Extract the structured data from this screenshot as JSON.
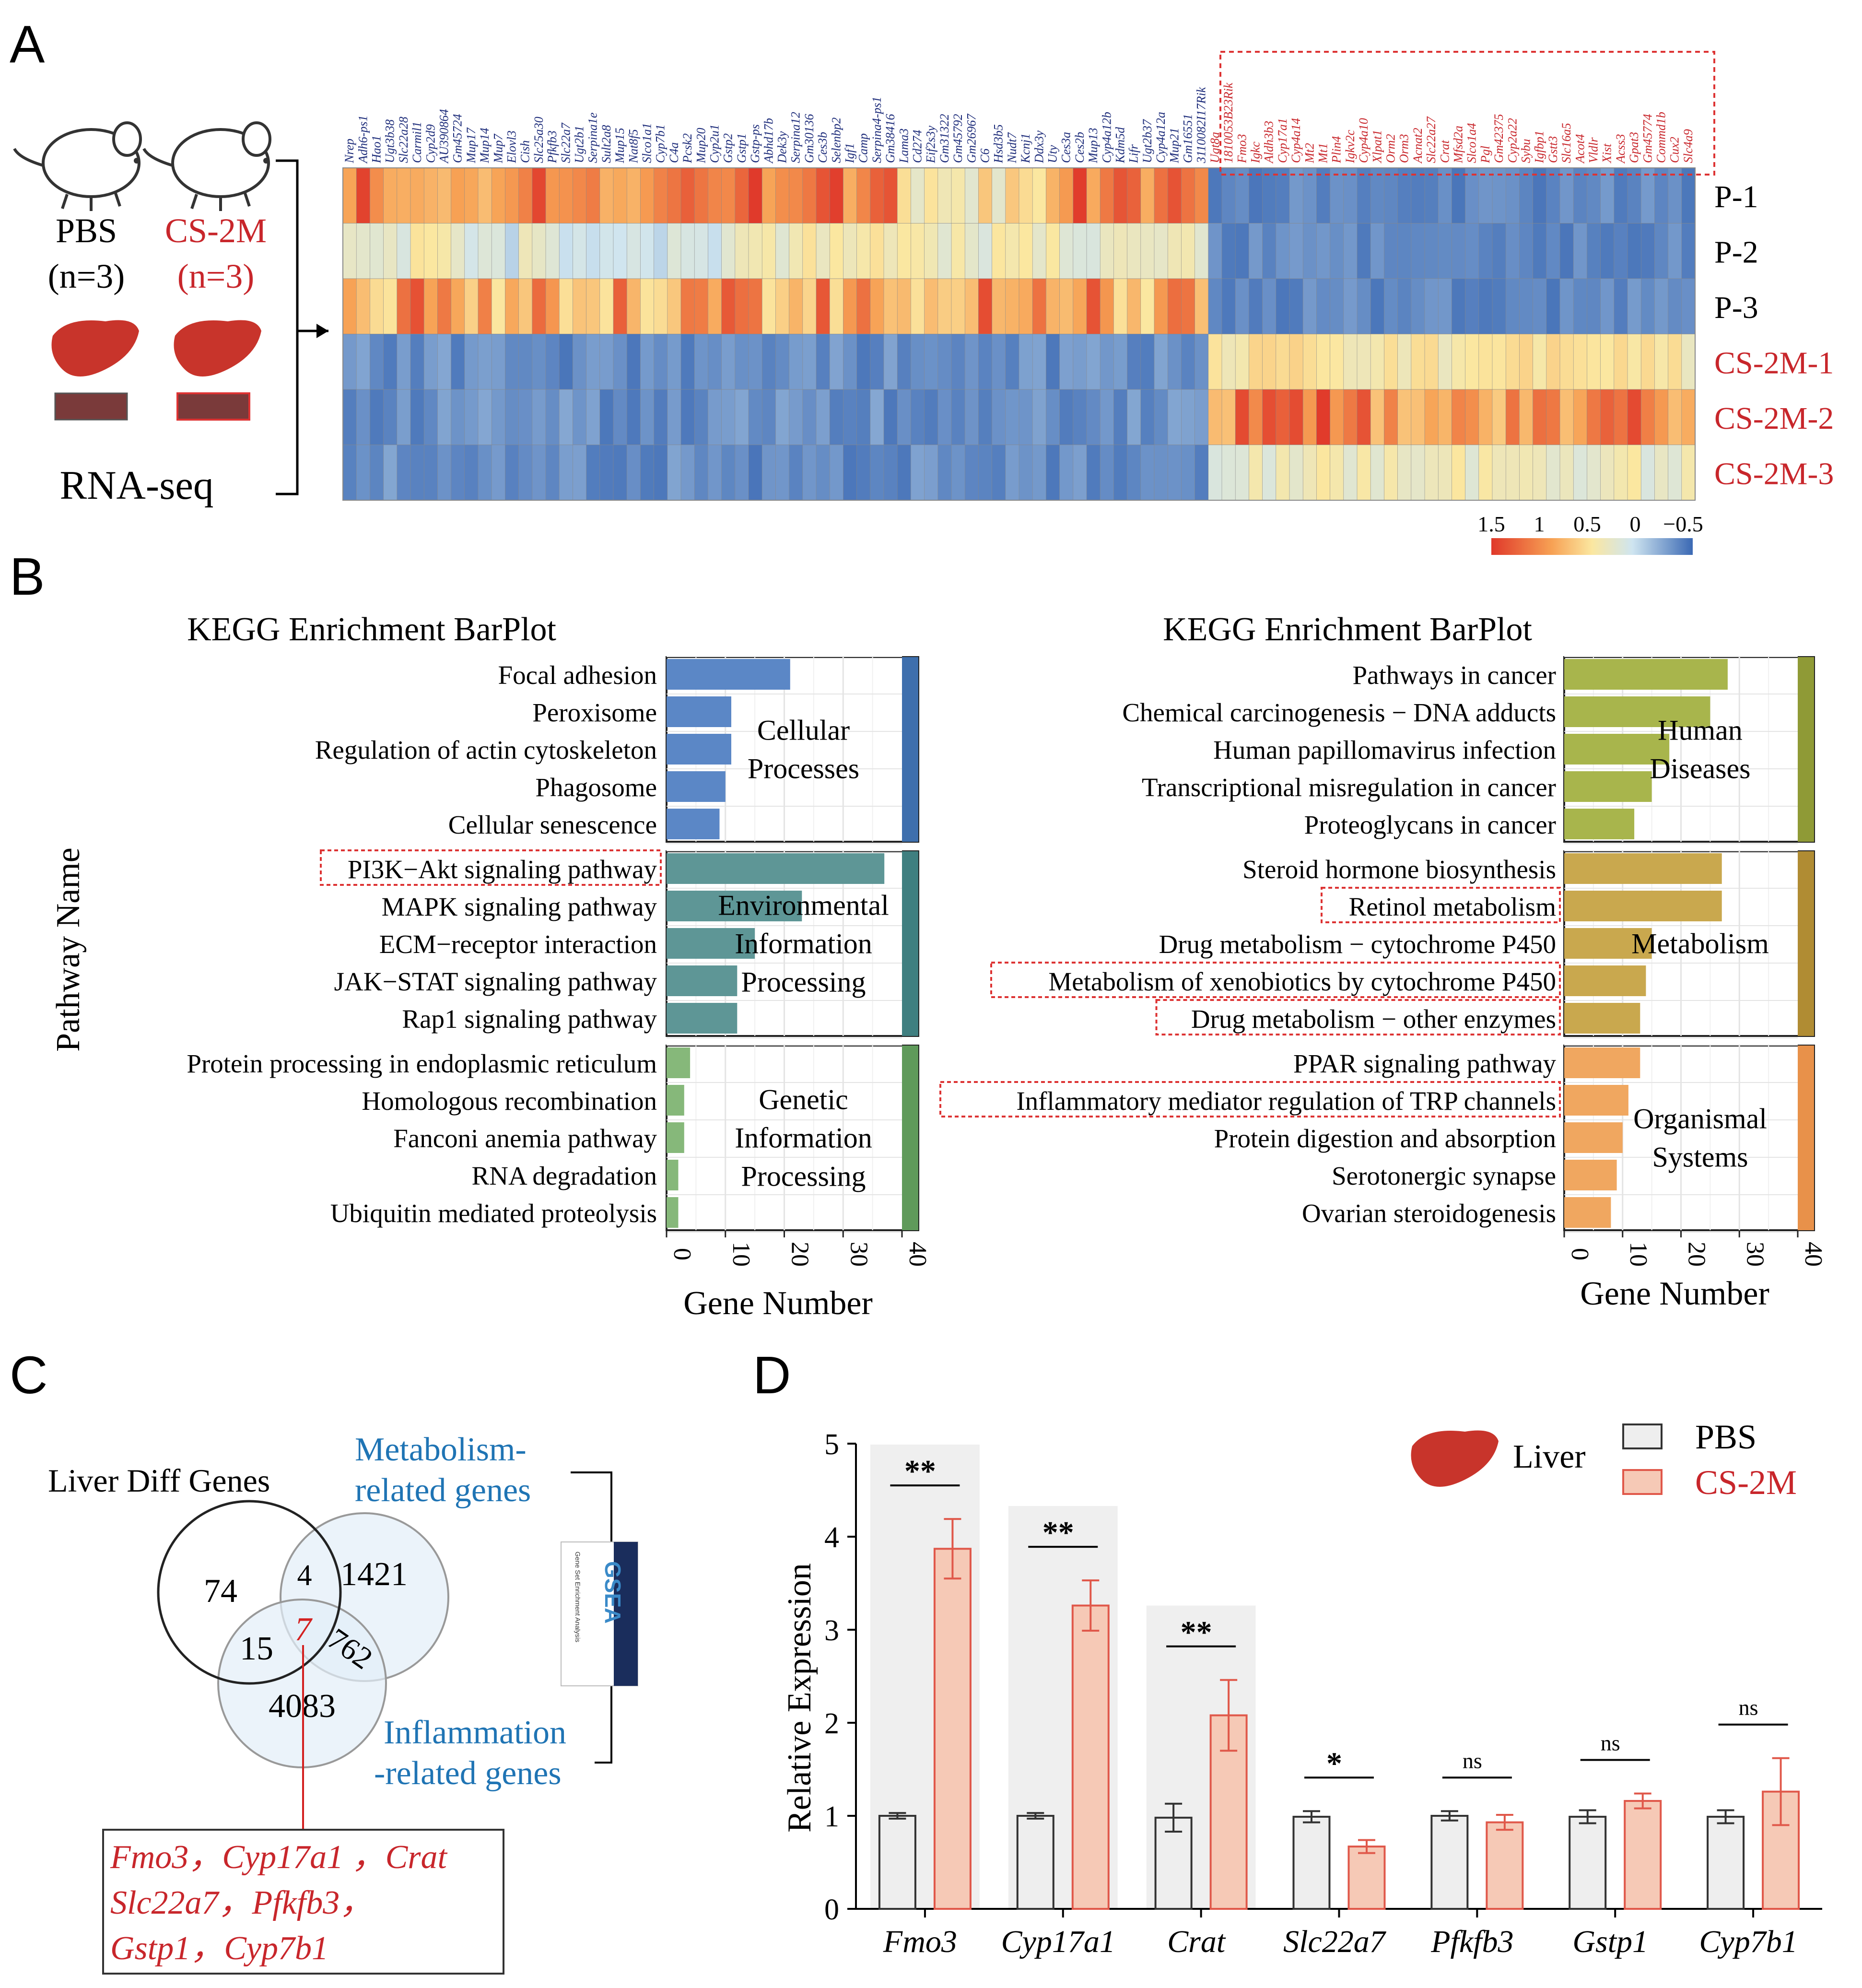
{
  "panels": {
    "a": "A",
    "b": "B",
    "c": "C",
    "d": "D"
  },
  "colors": {
    "red": "#c8262b",
    "blue": "#1f74b4",
    "navy": "#1d2c7a",
    "cs_bar": "#f6c9b6",
    "pbs_bar": "#eeeeee"
  },
  "panel_a": {
    "groups": [
      {
        "name": "PBS",
        "n": "(n=3)"
      },
      {
        "name": "CS-2M",
        "n": "(n=3)"
      }
    ],
    "method": "RNA-seq",
    "row_labels": [
      "P-1",
      "P-2",
      "P-3",
      "CS-2M-1",
      "CS-2M-2",
      "CS-2M-3"
    ],
    "colorbar_ticks": [
      "1.5",
      "1",
      "0.5",
      "0",
      "−0.5"
    ],
    "genes_left": [
      "Nrep",
      "Adh6-ps1",
      "Hao1",
      "Ugt3b38",
      "Slc22a28",
      "Carmil1",
      "Cyp2d9",
      "AU390864",
      "Gm45724",
      "Mup17",
      "Mup14",
      "Mup7",
      "Elovl3",
      "Cish",
      "Slc25a30",
      "Pfkfb3",
      "Slc22a7",
      "Ugt2b1",
      "Serpina1e",
      "Sult2a8",
      "Mup15",
      "Nat8f5",
      "Slco1a1",
      "Cyp7b1",
      "C4a",
      "Pcsk2",
      "Mup20",
      "Cyp2u1",
      "Gstp2",
      "Gstp1",
      "Gstp-ps",
      "Abhd17b",
      "Dek3y",
      "Serpina12",
      "Gm30136",
      "Ces3b",
      "Selenbp2",
      "Igf1",
      "Camp",
      "Serpina4-ps1",
      "Gm38416",
      "Lama3",
      "Cd274",
      "Eif2s3y",
      "Gm31322",
      "Gm45792",
      "Gm26967",
      "C6",
      "Hsd3b5",
      "Nudt7",
      "Kcnj1",
      "Ddx3y",
      "Uty",
      "Ces3a",
      "Ces2b",
      "Mup13",
      "Cyp4a12b",
      "Kdm5d",
      "Lifr",
      "Ugt2b37",
      "Cyp4a12a",
      "Mup21",
      "Gm16551",
      "3110082I17Rik"
    ],
    "genes_right": [
      "Ugt8a",
      "1810053B23Rik",
      "Fmo3",
      "Igkc",
      "Aldh3b3",
      "Cyp17a1",
      "Cyp4a14",
      "Mt2",
      "Mt1",
      "Plin4",
      "Igkv2c",
      "Cyp4a10",
      "Xlpat1",
      "Orm2",
      "Orm3",
      "Acnat2",
      "Slc22a27",
      "Crat",
      "Mfsd2a",
      "Slco1a4",
      "Pgl",
      "Gm42375",
      "Cyp2a22",
      "Sybu",
      "Igfbp1",
      "Gstt3",
      "Slc16a5",
      "Acot4",
      "Vldlr",
      "Xist",
      "Acss3",
      "Gpat3",
      "Gm45774",
      "Commd1b",
      "Cux2",
      "Slc4a9"
    ]
  },
  "panel_b": {
    "y_axis_title": "Pathway Name",
    "charts": [
      {
        "title": "KEGG Enrichment BarPlot",
        "x_title": "Gene Number",
        "ticks": [
          "0",
          "10",
          "20",
          "30",
          "40"
        ],
        "xlim": [
          0,
          40
        ],
        "groups": [
          {
            "category": [
              "Cellular",
              "Processes"
            ],
            "color": "#5b87c6",
            "strip": "#3e6fad",
            "items": [
              {
                "name": "Focal adhesion",
                "value": 21
              },
              {
                "name": "Peroxisome",
                "value": 11
              },
              {
                "name": "Regulation of actin cytoskeleton",
                "value": 11
              },
              {
                "name": "Phagosome",
                "value": 10
              },
              {
                "name": "Cellular senescence",
                "value": 9
              }
            ]
          },
          {
            "category": [
              "Environmental",
              "Information",
              "Processing"
            ],
            "color": "#5e9696",
            "strip": "#3f7f80",
            "items": [
              {
                "name": "PI3K−Akt signaling pathway",
                "value": 37,
                "boxed": true
              },
              {
                "name": "MAPK signaling pathway",
                "value": 23
              },
              {
                "name": "ECM−receptor interaction",
                "value": 15
              },
              {
                "name": "JAK−STAT signaling pathway",
                "value": 12
              },
              {
                "name": "Rap1 signaling pathway",
                "value": 12
              }
            ]
          },
          {
            "category": [
              "Genetic",
              "Information",
              "Processing"
            ],
            "color": "#86b87a",
            "strip": "#5f9a5a",
            "items": [
              {
                "name": "Protein processing in endoplasmic reticulum",
                "value": 4
              },
              {
                "name": "Homologous recombination",
                "value": 3
              },
              {
                "name": "Fanconi anemia pathway",
                "value": 3
              },
              {
                "name": "RNA degradation",
                "value": 2
              },
              {
                "name": "Ubiquitin mediated proteolysis",
                "value": 2
              }
            ]
          }
        ]
      },
      {
        "title": "KEGG Enrichment BarPlot",
        "x_title": "Gene Number",
        "ticks": [
          "0",
          "10",
          "20",
          "30",
          "40"
        ],
        "xlim": [
          0,
          40
        ],
        "groups": [
          {
            "category": [
              "Human",
              "Diseases"
            ],
            "color": "#a8b54c",
            "strip": "#8f9a36",
            "items": [
              {
                "name": "Pathways in cancer",
                "value": 28
              },
              {
                "name": "Chemical carcinogenesis − DNA adducts",
                "value": 25
              },
              {
                "name": "Human papillomavirus infection",
                "value": 18
              },
              {
                "name": "Transcriptional misregulation in cancer",
                "value": 15
              },
              {
                "name": "Proteoglycans in cancer",
                "value": 12
              }
            ]
          },
          {
            "category": [
              "Metabolism"
            ],
            "color": "#c9a84e",
            "strip": "#b08c33",
            "items": [
              {
                "name": "Steroid hormone biosynthesis",
                "value": 27
              },
              {
                "name": "Retinol metabolism",
                "value": 27,
                "boxed": true
              },
              {
                "name": "Drug metabolism − cytochrome P450",
                "value": 15
              },
              {
                "name": "Metabolism of xenobiotics by cytochrome P450",
                "value": 14,
                "boxed": true
              },
              {
                "name": "Drug metabolism − other enzymes",
                "value": 13,
                "boxed": true
              }
            ]
          },
          {
            "category": [
              "Organismal",
              "Systems"
            ],
            "color": "#f0a760",
            "strip": "#e8914a",
            "items": [
              {
                "name": "PPAR signaling pathway",
                "value": 13
              },
              {
                "name": "Inflammatory mediator regulation of TRP channels",
                "value": 11,
                "boxed": true
              },
              {
                "name": "Protein digestion and absorption",
                "value": 10
              },
              {
                "name": "Serotonergic synapse",
                "value": 9
              },
              {
                "name": "Ovarian steroidogenesis",
                "value": 8
              }
            ]
          }
        ]
      }
    ]
  },
  "panel_c": {
    "title": "Liver Diff Genes",
    "set_metabolism": [
      "Metabolism-",
      "related genes"
    ],
    "set_inflammation": [
      "Inflammation",
      "-related genes"
    ],
    "counts": {
      "liver_only": "74",
      "liver_metab": "4",
      "metab_only": "1421",
      "liver_inflam": "15",
      "all_three": "7",
      "metab_inflam": "762",
      "inflam_only": "4083"
    },
    "gsea_logo": {
      "text": "GSEA",
      "subtitle": "Gene Set Enrichment Analysis"
    },
    "genes": [
      "Fmo3，Cyp17a1 ，Crat",
      "Slc22a7，Pfkfb3，",
      "Gstp1，Cyp7b1"
    ]
  },
  "chart_data": {
    "type": "bar",
    "ylabel": "Relative Expression",
    "ylim": [
      0,
      5
    ],
    "yticks": [
      "0",
      "1",
      "2",
      "3",
      "4",
      "5"
    ],
    "legend_title": "Liver",
    "categories": [
      "Fmo3",
      "Cyp17a1",
      "Crat",
      "Slc22a7",
      "Pfkfb3",
      "Gstp1",
      "Cyp7b1"
    ],
    "series": [
      {
        "name": "PBS",
        "values": [
          1.0,
          1.0,
          0.98,
          0.99,
          1.0,
          0.99,
          0.99
        ],
        "errors": [
          0.03,
          0.03,
          0.15,
          0.06,
          0.05,
          0.07,
          0.07
        ]
      },
      {
        "name": "CS-2M",
        "values": [
          3.87,
          3.26,
          2.08,
          0.67,
          0.93,
          1.16,
          1.26
        ],
        "errors": [
          0.32,
          0.27,
          0.38,
          0.07,
          0.08,
          0.08,
          0.36
        ]
      }
    ],
    "significance": [
      "**",
      "**",
      "**",
      "*",
      "ns",
      "ns",
      "ns"
    ],
    "shaded_categories": [
      0,
      1,
      2
    ]
  }
}
